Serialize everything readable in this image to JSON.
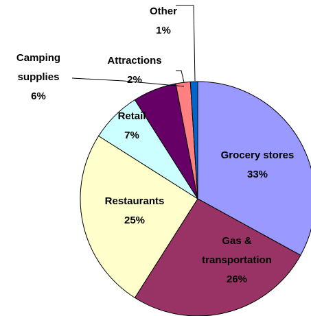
{
  "chart_data": {
    "type": "pie",
    "categories": [
      "Grocery stores",
      "Gas & transportation",
      "Restaurants",
      "Retail",
      "Camping supplies",
      "Attractions",
      "Other"
    ],
    "values": [
      33,
      26,
      25,
      7,
      6,
      2,
      1
    ],
    "value_labels": [
      "33%",
      "26%",
      "25%",
      "7%",
      "6%",
      "2%",
      "1%"
    ],
    "colors": [
      "#9999ff",
      "#993366",
      "#ffffcc",
      "#ccffff",
      "#660066",
      "#ff8080",
      "#0066cc"
    ]
  }
}
